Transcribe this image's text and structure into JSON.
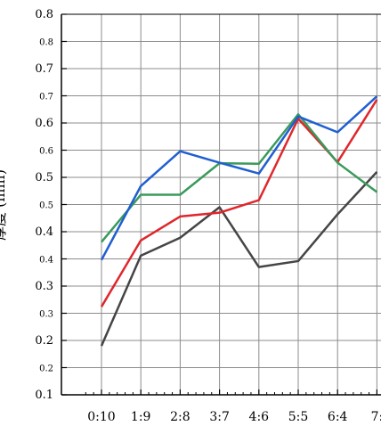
{
  "chart_data": {
    "type": "line",
    "ylabel": "厚度 (mm)",
    "categories": [
      "0:10",
      "1:9",
      "2:8",
      "3:7",
      "4:6",
      "5:5",
      "6:4",
      "7:"
    ],
    "y_tick_labels": [
      "0.1",
      "0.2",
      "0.2",
      "0.3",
      "0.3",
      "0.4",
      "0.4",
      "0.5",
      "0.5",
      "0.6",
      "0.6",
      "0.7",
      "0.7",
      "0.8",
      "0.8"
    ],
    "ylim": [
      0.1,
      0.8
    ],
    "grid": true,
    "series": [
      {
        "color": "#1f5fd1",
        "values": [
          0.348,
          0.484,
          0.548,
          0.527,
          0.507,
          0.612,
          0.583,
          0.649
        ]
      },
      {
        "color": "#3a9a5b",
        "values": [
          0.381,
          0.468,
          0.468,
          0.526,
          0.525,
          0.616,
          0.527,
          0.473
        ]
      },
      {
        "color": "#e0262b",
        "values": [
          0.262,
          0.384,
          0.428,
          0.435,
          0.458,
          0.608,
          0.528,
          0.643
        ]
      },
      {
        "color": "#454545",
        "values": [
          0.19,
          0.356,
          0.389,
          0.445,
          0.335,
          0.346,
          0.432,
          0.51
        ]
      }
    ]
  }
}
